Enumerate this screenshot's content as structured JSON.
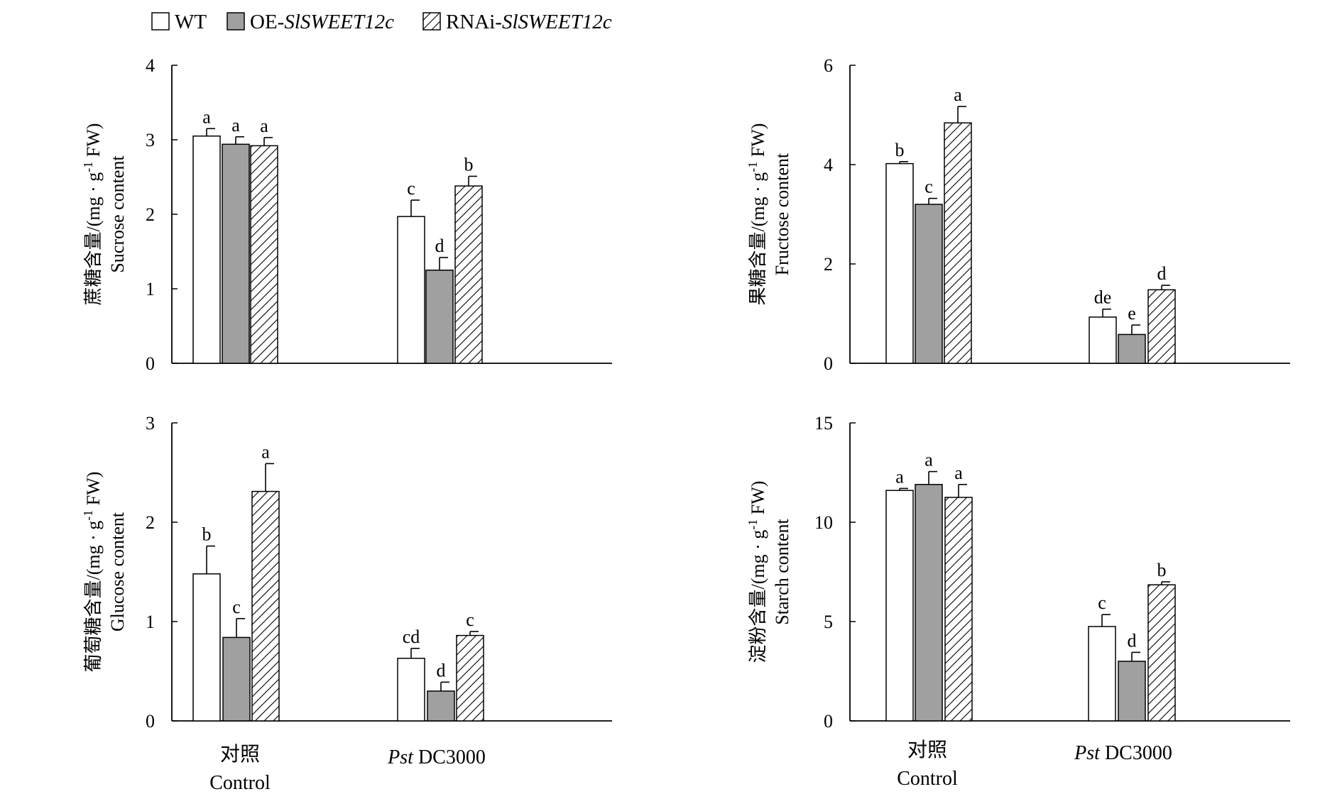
{
  "legend": {
    "position": "top-left",
    "entries": [
      {
        "label_main": "WT",
        "label_prefix": "",
        "label_italic": ""
      },
      {
        "label_main": "",
        "label_prefix": "OE-",
        "label_italic": "SlSWEET12c"
      },
      {
        "label_main": "",
        "label_prefix": "RNAi-",
        "label_italic": "SlSWEET12c"
      }
    ]
  },
  "styles": {
    "wt_fill": "#ffffff",
    "oe_fill": "#a0a0a0",
    "rnai_hatch": "#000000",
    "stroke": "#000000"
  },
  "categories": [
    {
      "cn": "对照",
      "en": "Control",
      "italic": "",
      "rest": ""
    },
    {
      "cn": "",
      "en": "",
      "italic": "Pst",
      "rest": " DC3000"
    }
  ],
  "chart_data": [
    {
      "type": "bar",
      "ylabel_cn": "蔗糖含量/(mg · g",
      "ylabel_sup": "-1",
      "ylabel_tail": " FW)",
      "ylabel_en": "Sucrose content",
      "ylim": [
        0,
        4
      ],
      "yticks": [
        "0",
        "1",
        "2",
        "3",
        "4"
      ],
      "series": [
        {
          "key": "wt",
          "values": [
            3.05,
            1.97
          ],
          "errors": [
            0.1,
            0.22
          ],
          "letters": [
            "a",
            "c"
          ]
        },
        {
          "key": "oe",
          "values": [
            2.94,
            1.25
          ],
          "errors": [
            0.1,
            0.17
          ],
          "letters": [
            "a",
            "d"
          ]
        },
        {
          "key": "rnai",
          "values": [
            2.92,
            2.38
          ],
          "errors": [
            0.11,
            0.13
          ],
          "letters": [
            "a",
            "b"
          ]
        }
      ]
    },
    {
      "type": "bar",
      "ylabel_cn": "果糖含量/(mg · g",
      "ylabel_sup": "-1",
      "ylabel_tail": " FW)",
      "ylabel_en": "Fructose content",
      "ylim": [
        0,
        6
      ],
      "yticks": [
        "0",
        "2",
        "4",
        "6"
      ],
      "series": [
        {
          "key": "wt",
          "values": [
            4.02,
            0.93
          ],
          "errors": [
            0.04,
            0.16
          ],
          "letters": [
            "b",
            "de"
          ]
        },
        {
          "key": "oe",
          "values": [
            3.2,
            0.58
          ],
          "errors": [
            0.12,
            0.19
          ],
          "letters": [
            "c",
            "e"
          ]
        },
        {
          "key": "rnai",
          "values": [
            4.84,
            1.48
          ],
          "errors": [
            0.33,
            0.09
          ],
          "letters": [
            "a",
            "d"
          ]
        }
      ]
    },
    {
      "type": "bar",
      "ylabel_cn": "葡萄糖含量/(mg · g",
      "ylabel_sup": "-1",
      "ylabel_tail": " FW)",
      "ylabel_en": "Glucose content",
      "ylim": [
        0,
        3
      ],
      "yticks": [
        "0",
        "1",
        "2",
        "3"
      ],
      "series": [
        {
          "key": "wt",
          "values": [
            1.48,
            0.63
          ],
          "errors": [
            0.28,
            0.1
          ],
          "letters": [
            "b",
            "cd"
          ]
        },
        {
          "key": "oe",
          "values": [
            0.84,
            0.3
          ],
          "errors": [
            0.19,
            0.09
          ],
          "letters": [
            "c",
            "d"
          ]
        },
        {
          "key": "rnai",
          "values": [
            2.31,
            0.86
          ],
          "errors": [
            0.28,
            0.04
          ],
          "letters": [
            "a",
            "c"
          ]
        }
      ]
    },
    {
      "type": "bar",
      "ylabel_cn": "淀粉含量/(mg · g",
      "ylabel_sup": "-1",
      "ylabel_tail": " FW)",
      "ylabel_en": "Starch content",
      "ylim": [
        0,
        15
      ],
      "yticks": [
        "0",
        "5",
        "10",
        "15"
      ],
      "series": [
        {
          "key": "wt",
          "values": [
            11.6,
            4.75
          ],
          "errors": [
            0.1,
            0.6
          ],
          "letters": [
            "a",
            "c"
          ]
        },
        {
          "key": "oe",
          "values": [
            11.9,
            3.0
          ],
          "errors": [
            0.65,
            0.45
          ],
          "letters": [
            "a",
            "d"
          ]
        },
        {
          "key": "rnai",
          "values": [
            11.25,
            6.85
          ],
          "errors": [
            0.65,
            0.15
          ],
          "letters": [
            "a",
            "b"
          ]
        }
      ]
    }
  ]
}
